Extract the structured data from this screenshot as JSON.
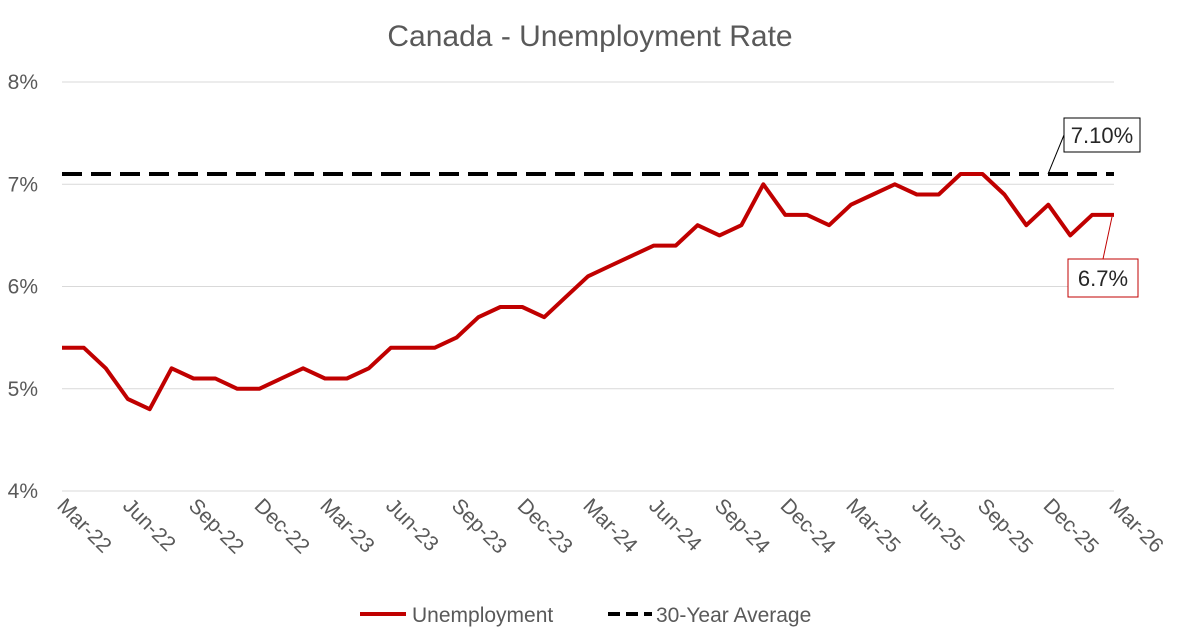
{
  "chart_data": {
    "type": "line",
    "title": "Canada - Unemployment Rate",
    "xlabel": "",
    "ylabel": "",
    "ylim": [
      4,
      8
    ],
    "yticks": [
      4,
      5,
      6,
      7,
      8
    ],
    "ytick_labels": [
      "4%",
      "5%",
      "6%",
      "7%",
      "8%"
    ],
    "x_tick_labels": [
      "Mar-22",
      "Jun-22",
      "Sep-22",
      "Dec-22",
      "Mar-23",
      "Jun-23",
      "Sep-23",
      "Dec-23",
      "Mar-24",
      "Jun-24",
      "Sep-24",
      "Dec-24",
      "Mar-25",
      "Jun-25",
      "Sep-25",
      "Dec-25",
      "Mar-26"
    ],
    "x_start": "Mar-22",
    "x_end": "Mar-26",
    "grid": true,
    "legend_position": "bottom",
    "series": [
      {
        "name": "Unemployment",
        "color": "#c00000",
        "style": "solid",
        "values": [
          5.4,
          5.4,
          5.2,
          4.9,
          4.8,
          5.2,
          5.1,
          5.1,
          5.0,
          5.0,
          5.1,
          5.2,
          5.1,
          5.1,
          5.2,
          5.4,
          5.4,
          5.4,
          5.5,
          5.7,
          5.8,
          5.8,
          5.7,
          5.9,
          6.1,
          6.2,
          6.3,
          6.4,
          6.4,
          6.6,
          6.5,
          6.6,
          7.0,
          6.7,
          6.7,
          6.6,
          6.8,
          6.9,
          7.0,
          6.9,
          6.9,
          7.1,
          7.1,
          6.9,
          6.6,
          6.8,
          6.5,
          6.7,
          6.7
        ]
      },
      {
        "name": "30-Year Average",
        "color": "#000000",
        "style": "dashed",
        "values": [
          7.1
        ]
      }
    ],
    "annotations": [
      {
        "series": "30-Year Average",
        "text": "7.10%",
        "border_color": "#000000"
      },
      {
        "series": "Unemployment",
        "text": "6.7%",
        "border_color": "#c00000"
      }
    ]
  }
}
